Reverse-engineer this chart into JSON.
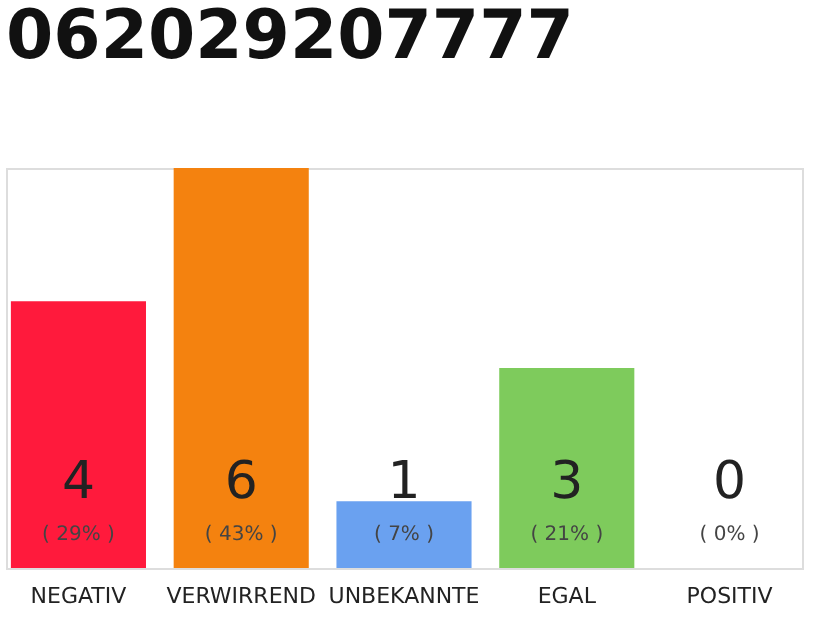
{
  "chart_data": {
    "type": "bar",
    "title": "062029207777",
    "categories": [
      "NEGATIV",
      "VERWIRREND",
      "UNBEKANNTE",
      "EGAL",
      "POSITIV"
    ],
    "values": [
      4,
      6,
      1,
      3,
      0
    ],
    "colors": [
      "#ff1a3c",
      "#f4820f",
      "#6aa1f0",
      "#7ecb5c",
      "#dddddd"
    ],
    "value_labels": [
      "4",
      "6",
      "1",
      "3",
      "0"
    ],
    "annotations": [
      "( 29% )",
      "( 43% )",
      "( 7% )",
      "( 21% )",
      "( 0% )"
    ],
    "tick_labels": "x"
  }
}
